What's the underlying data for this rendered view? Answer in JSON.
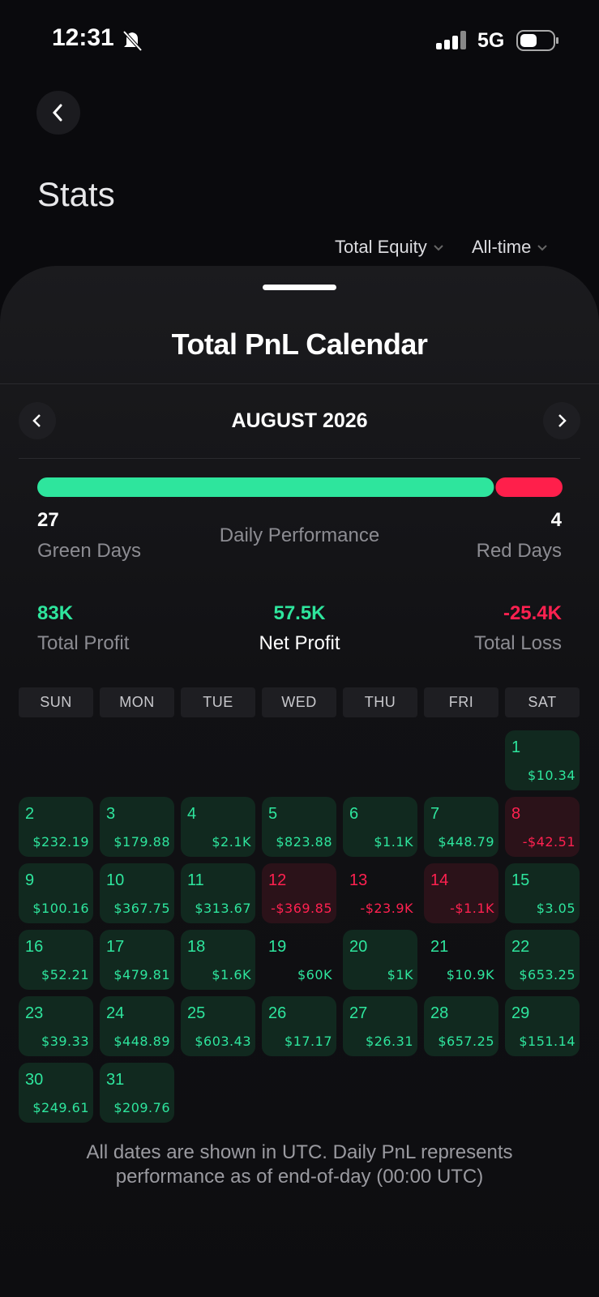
{
  "status_bar": {
    "time": "12:31",
    "network": "5G"
  },
  "header": {
    "title": "Stats",
    "filters": [
      "Total Equity",
      "All-time"
    ]
  },
  "sheet": {
    "title": "Total PnL Calendar",
    "month": "AUGUST 2026"
  },
  "performance": {
    "green_days": 27,
    "green_label": "Green Days",
    "label": "Daily Performance",
    "red_days": 4,
    "red_label": "Red Days"
  },
  "totals": [
    {
      "value": "83K",
      "label": "Total Profit"
    },
    {
      "value": "57.5K",
      "label": "Net Profit"
    },
    {
      "value": "-25.4K",
      "label": "Total Loss"
    }
  ],
  "weekdays": [
    "SUN",
    "MON",
    "TUE",
    "WED",
    "THU",
    "FRI",
    "SAT"
  ],
  "days": [
    {
      "day": 1,
      "pnl": "$10.34",
      "background": true
    },
    {
      "day": 2,
      "pnl": "$232.19",
      "background": true
    },
    {
      "day": 3,
      "pnl": "$179.88",
      "background": true
    },
    {
      "day": 4,
      "pnl": "$2.1K",
      "background": true
    },
    {
      "day": 5,
      "pnl": "$823.88",
      "background": true
    },
    {
      "day": 6,
      "pnl": "$1.1K",
      "background": true
    },
    {
      "day": 7,
      "pnl": "$448.79",
      "background": true
    },
    {
      "day": 8,
      "pnl": "-$42.51",
      "background": true
    },
    {
      "day": 9,
      "pnl": "$100.16",
      "background": true
    },
    {
      "day": 10,
      "pnl": "$367.75",
      "background": true
    },
    {
      "day": 11,
      "pnl": "$313.67",
      "background": true
    },
    {
      "day": 12,
      "pnl": "-$369.85",
      "background": true
    },
    {
      "day": 13,
      "pnl": "-$23.9K",
      "background": false
    },
    {
      "day": 14,
      "pnl": "-$1.1K",
      "background": true
    },
    {
      "day": 15,
      "pnl": "$3.05",
      "background": true
    },
    {
      "day": 16,
      "pnl": "$52.21",
      "background": true
    },
    {
      "day": 17,
      "pnl": "$479.81",
      "background": true
    },
    {
      "day": 18,
      "pnl": "$1.6K",
      "background": true
    },
    {
      "day": 19,
      "pnl": "$60K",
      "background": false
    },
    {
      "day": 20,
      "pnl": "$1K",
      "background": true
    },
    {
      "day": 21,
      "pnl": "$10.9K",
      "background": false
    },
    {
      "day": 22,
      "pnl": "$653.25",
      "background": true
    },
    {
      "day": 23,
      "pnl": "$39.33",
      "background": true
    },
    {
      "day": 24,
      "pnl": "$448.89",
      "background": true
    },
    {
      "day": 25,
      "pnl": "$603.43",
      "background": true
    },
    {
      "day": 26,
      "pnl": "$17.17",
      "background": true
    },
    {
      "day": 27,
      "pnl": "$26.31",
      "background": true
    },
    {
      "day": 28,
      "pnl": "$657.25",
      "background": true
    },
    {
      "day": 29,
      "pnl": "$151.14",
      "background": true
    },
    {
      "day": 30,
      "pnl": "$249.61",
      "background": true
    },
    {
      "day": 31,
      "pnl": "$209.76",
      "background": true
    }
  ],
  "footer": "All dates are shown in UTC. Daily PnL represents performance as of end-of-day (00:00 UTC)"
}
